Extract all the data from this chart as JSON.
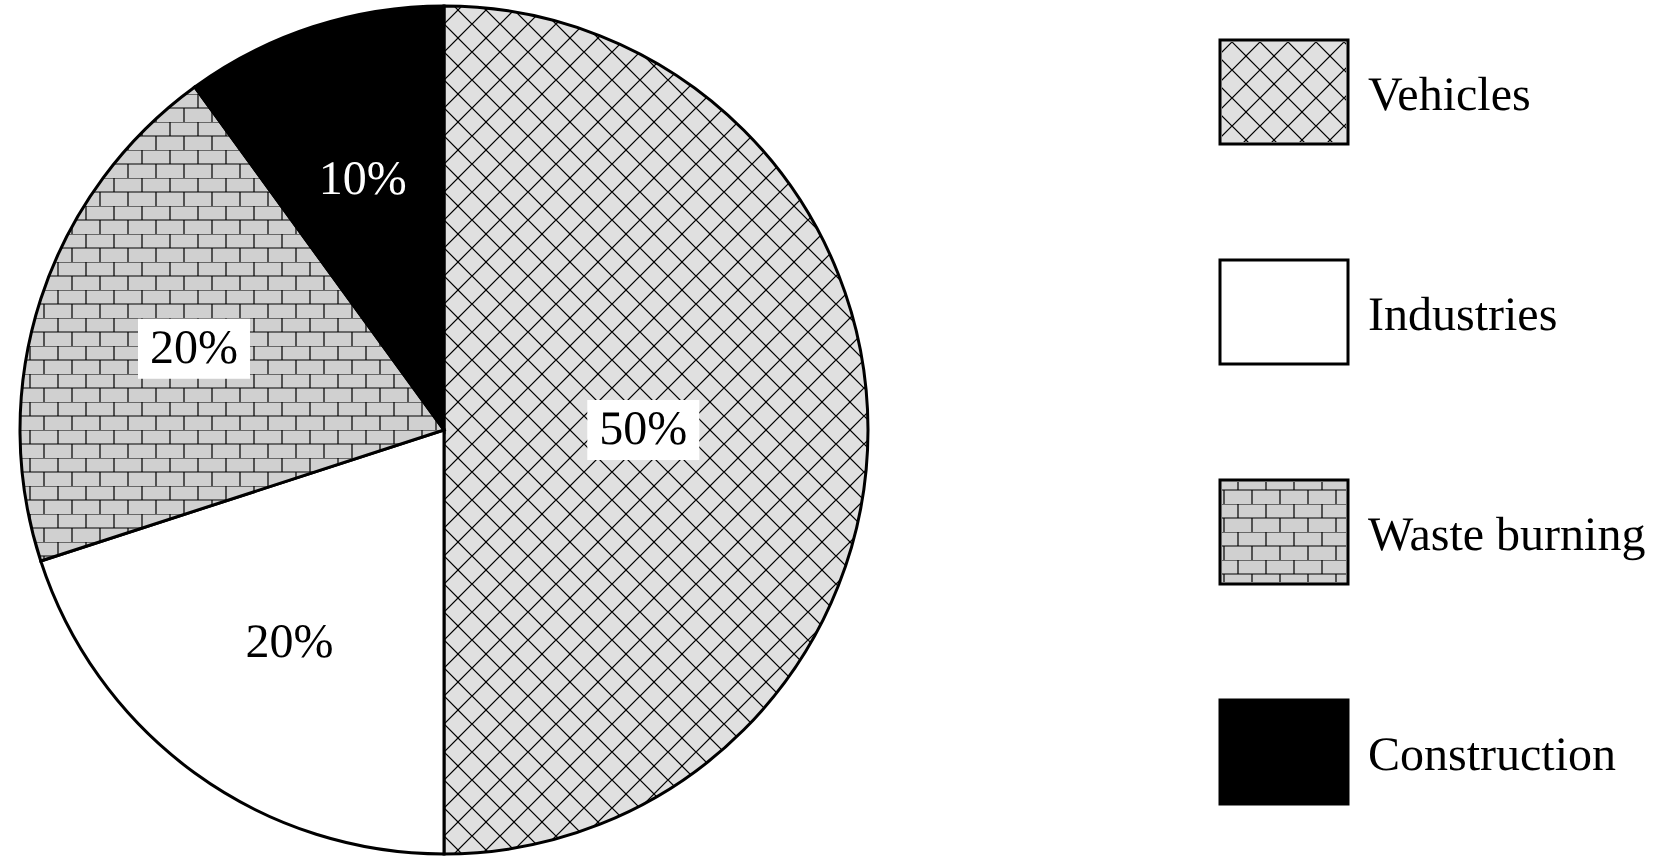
{
  "chart_data": {
    "type": "pie",
    "categories": [
      "Vehicles",
      "Industries",
      "Waste burning",
      "Construction"
    ],
    "values": [
      50,
      20,
      20,
      10
    ],
    "value_labels": [
      "50%",
      "20%",
      "20%",
      "10%"
    ],
    "colors": [
      "#e0e0e0",
      "#ffffff",
      "#d0d0d0",
      "#000000"
    ],
    "legend": "right"
  }
}
